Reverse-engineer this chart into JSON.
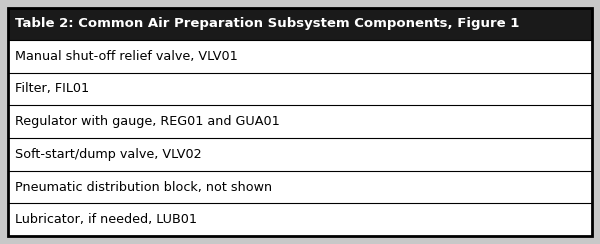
{
  "title": "Table 2: Common Air Preparation Subsystem Components, Figure 1",
  "rows": [
    "Manual shut-off relief valve, VLV01",
    "Filter, FIL01",
    "Regulator with gauge, REG01 and GUA01",
    "Soft-start/dump valve, VLV02",
    "Pneumatic distribution block, not shown",
    "Lubricator, if needed, LUB01"
  ],
  "header_bg": "#1a1a1a",
  "header_text_color": "#ffffff",
  "row_bg": "#ffffff",
  "row_text_color": "#000000",
  "border_color": "#000000",
  "outer_bg": "#c8c8c8",
  "title_fontsize": 9.5,
  "row_fontsize": 9.2
}
